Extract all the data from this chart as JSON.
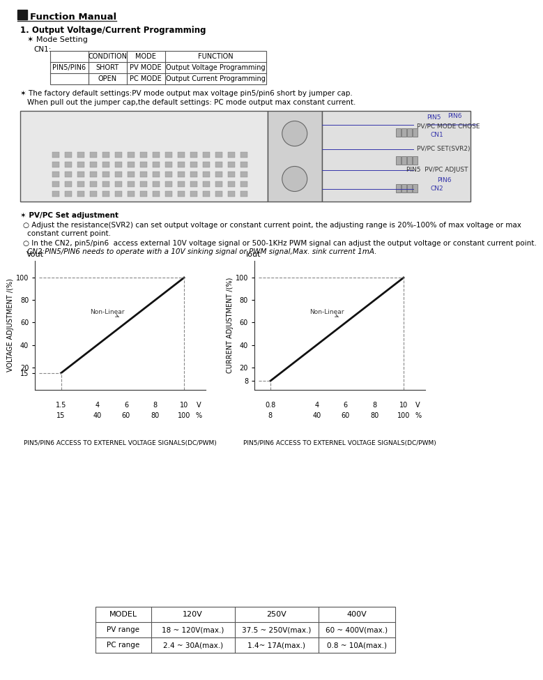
{
  "title": "Function Manual",
  "section1_title": "1. Output Voltage/Current Programming",
  "mode_setting_label": "✶ Mode Setting",
  "cn1_label": "CN1:",
  "table1_headers": [
    "",
    "CONDITION",
    "MODE",
    "FUNCTION"
  ],
  "table1_row1": [
    "PIN5/PIN6",
    "SHORT",
    "PV MODE",
    "Output Voltage Programming"
  ],
  "table1_row2": [
    "",
    "OPEN",
    "PC MODE",
    "Output Current Programming"
  ],
  "note1": "✶ The factory default settings:PV mode output max voltage pin5/pin6 short by jumper cap.\n   When pull out the jumper cap,the default settings: PC mode output max constant current.",
  "pv_pc_note_title": "✶ PV/PC Set adjustment",
  "pv_pc_note1": "○ Adjust the resistance(SVR2) can set output voltage or constant current point, the adjusting range is 20%-100% of max voltage or max\n   constant current point.",
  "pv_pc_note2": "○ In the CN2, pin5/pin6  access external 10V voltage signal or 500-1KHz PWM signal can adjust the output voltage or constant current point.\n   CN2:PIN5/PIN6 needs to operate with a 10V sinking signal or PWM signal,Max. sink current 1mA.",
  "graph1_title": "Vout",
  "graph1_ylabel": "VOLTAGE ADJUSTMENT /(%)",
  "graph1_xlabel_top": [
    "1.5",
    "4",
    "6",
    "8",
    "10",
    "V"
  ],
  "graph1_xlabel_bot": [
    "15",
    "40",
    "60",
    "80",
    "100",
    "%"
  ],
  "graph1_yticks": [
    15,
    20,
    40,
    60,
    80,
    100
  ],
  "graph1_label": "Non-Linear",
  "graph1_caption": "PIN5/PIN6 ACCESS TO EXTERNEL VOLTAGE SIGNALS(DC/PWM)",
  "graph2_title": "Iout",
  "graph2_ylabel": "CURRENT ADJUSTMENT /(%)",
  "graph2_xlabel_top": [
    "0.8",
    "4",
    "6",
    "8",
    "10",
    "V"
  ],
  "graph2_xlabel_bot": [
    "8",
    "40",
    "60",
    "80",
    "100",
    "%"
  ],
  "graph2_yticks": [
    8,
    20,
    40,
    60,
    80,
    100
  ],
  "graph2_label": "Non-Linear",
  "graph2_caption": "PIN5/PIN6 ACCESS TO EXTERNEL VOLTAGE SIGNALS(DC/PWM)",
  "bottom_table_headers": [
    "MODEL",
    "120V",
    "250V",
    "400V"
  ],
  "bottom_table_row1": [
    "PV range",
    "18 ~ 120V(max.)",
    "37.5 ~ 250V(max.)",
    "60 ~ 400V(max.)"
  ],
  "bottom_table_row2": [
    "PC range",
    "2.4 ~ 30A(max.)",
    "1.4~ 17A(max.)",
    "0.8 ~ 10A(max.)"
  ],
  "bg_color": "#ffffff",
  "text_color": "#000000",
  "line_color": "#1a1a1a",
  "dashed_color": "#888888"
}
